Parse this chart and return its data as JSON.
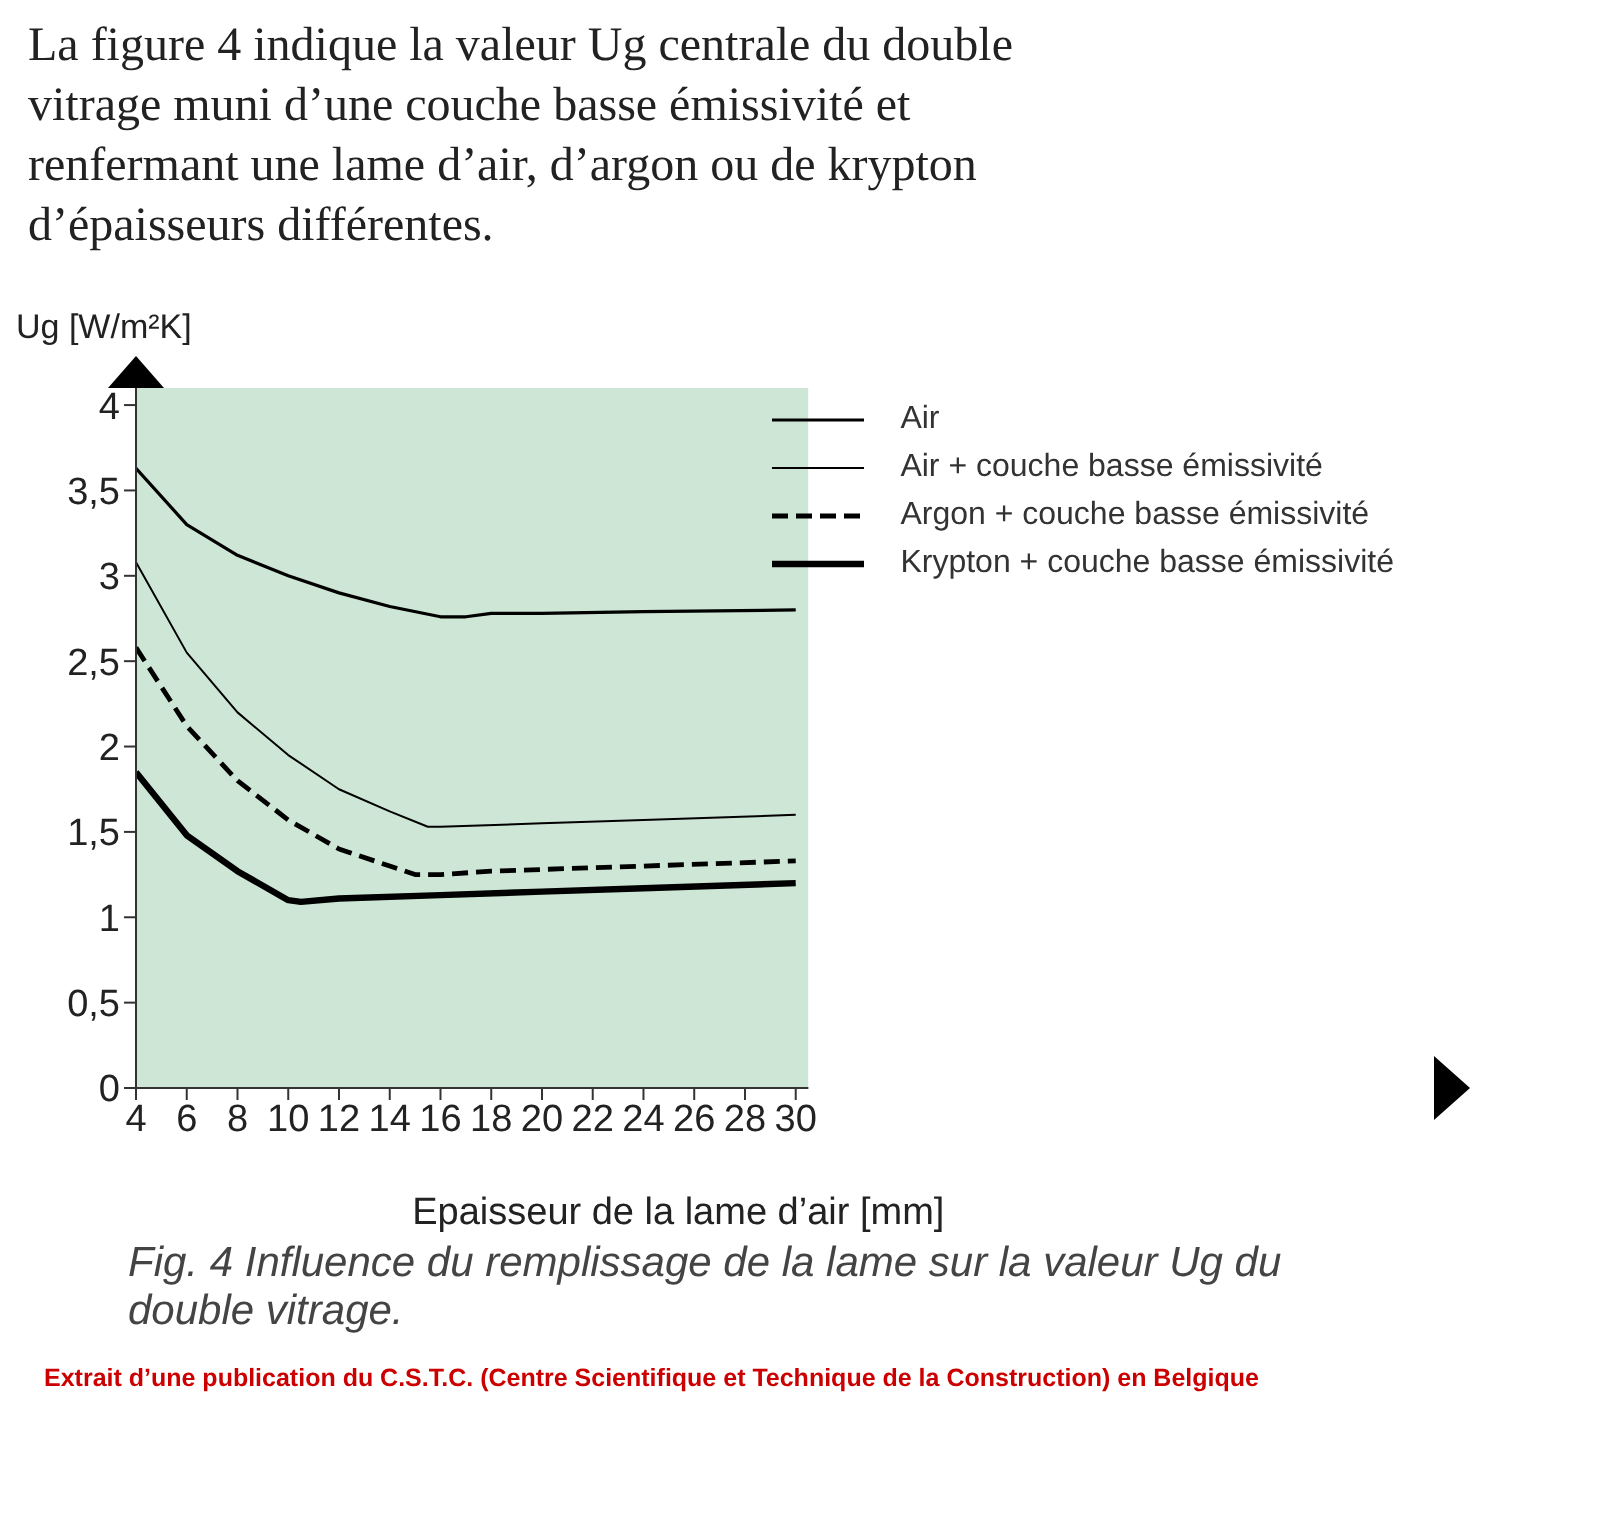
{
  "chart_data": {
    "type": "line",
    "title": "La figure 4 indique la valeur Ug centrale du double vitrage muni d’une couche basse émissivité et renfermant une lame d’air, d’argon ou de krypton d’épaisseurs différentes.",
    "xlabel": "Epaisseur de la lame d’air [mm]",
    "ylabel": "Ug [W/m²K]",
    "xlim": [
      4,
      30.5
    ],
    "xticks": [
      4,
      6,
      8,
      10,
      12,
      14,
      16,
      18,
      20,
      22,
      24,
      26,
      28,
      30
    ],
    "ylim": [
      0,
      4.1
    ],
    "yticks": [
      0,
      {
        "value": 0.5,
        "label": "0,5"
      },
      1,
      {
        "value": 1.5,
        "label": "1,5"
      },
      2,
      {
        "value": 2.5,
        "label": "2,5"
      },
      3,
      {
        "value": 3.5,
        "label": "3,5"
      },
      4
    ],
    "grid": false,
    "legend": "top right",
    "marker": "none",
    "series": [
      {
        "name": "Air",
        "color": "#000000",
        "line_style": "solid",
        "x": [
          4,
          6,
          8,
          10,
          12,
          14,
          16,
          17,
          18,
          20,
          24,
          30
        ],
        "values": [
          3.63,
          3.3,
          3.12,
          3.0,
          2.9,
          2.82,
          2.76,
          2.76,
          2.78,
          2.78,
          2.79,
          2.8
        ]
      },
      {
        "name": "Air + couche basse émissivité",
        "color": "#000000",
        "line_style": "solid",
        "x": [
          4,
          6,
          8,
          10,
          12,
          14,
          15.5,
          16,
          20,
          24,
          30
        ],
        "values": [
          3.08,
          2.55,
          2.2,
          1.95,
          1.75,
          1.62,
          1.53,
          1.53,
          1.55,
          1.57,
          1.6
        ]
      },
      {
        "name": "Argon + couche basse émissivité",
        "color": "#000000",
        "line_style": "dashed",
        "x": [
          4,
          6,
          8,
          10,
          12,
          14,
          15,
          16,
          18,
          20,
          24,
          30
        ],
        "values": [
          2.58,
          2.12,
          1.8,
          1.57,
          1.4,
          1.3,
          1.25,
          1.25,
          1.27,
          1.28,
          1.3,
          1.33
        ]
      },
      {
        "name": "Krypton + couche basse émissivité",
        "color": "#000000",
        "line_style": "solid",
        "x": [
          4,
          6,
          8,
          10,
          10.5,
          12,
          16,
          20,
          24,
          30
        ],
        "values": [
          1.85,
          1.48,
          1.27,
          1.1,
          1.09,
          1.11,
          1.13,
          1.15,
          1.17,
          1.2
        ]
      }
    ],
    "annotations": [
      "Fig. 4 Influence du remplissage de la lame sur la valeur Ug du double vitrage.",
      "Extrait d’une publication du C.S.T.C. (Centre Scientifique et Technique de la Construction) en Belgique"
    ]
  }
}
